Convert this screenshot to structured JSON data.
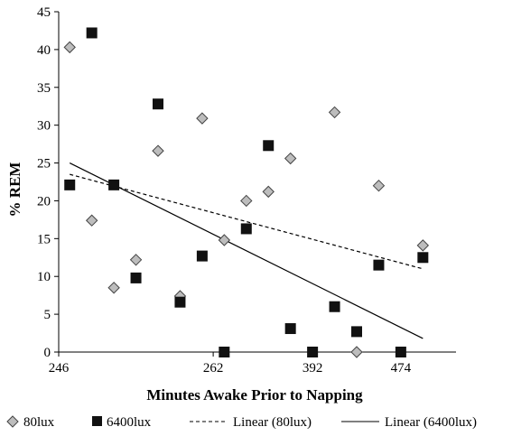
{
  "chart_data": {
    "type": "scatter",
    "title": "",
    "xlabel": "Minutes Awake Prior to Napping",
    "ylabel": "% REM",
    "ylim": [
      0,
      45
    ],
    "yticks": [
      0,
      5,
      10,
      15,
      20,
      25,
      30,
      35,
      40,
      45
    ],
    "xlim": [
      0,
      18
    ],
    "xticks": [
      {
        "pos": 0,
        "label": "246"
      },
      {
        "pos": 7,
        "label": "262"
      },
      {
        "pos": 11.5,
        "label": "392"
      },
      {
        "pos": 15.5,
        "label": "474"
      }
    ],
    "grid": false,
    "legend_position": "bottom",
    "series": [
      {
        "name": "80lux",
        "marker": "diamond",
        "color": "#bdbdbd",
        "points": [
          {
            "x": 0.5,
            "y": 40.3
          },
          {
            "x": 1.5,
            "y": 17.4
          },
          {
            "x": 2.5,
            "y": 8.5
          },
          {
            "x": 3.5,
            "y": 12.2
          },
          {
            "x": 4.5,
            "y": 26.6
          },
          {
            "x": 5.5,
            "y": 7.4
          },
          {
            "x": 6.5,
            "y": 30.9
          },
          {
            "x": 7.5,
            "y": 14.8
          },
          {
            "x": 8.5,
            "y": 20.0
          },
          {
            "x": 9.5,
            "y": 21.2
          },
          {
            "x": 10.5,
            "y": 25.6
          },
          {
            "x": 12.5,
            "y": 31.7
          },
          {
            "x": 13.5,
            "y": 0.0
          },
          {
            "x": 14.5,
            "y": 22.0
          },
          {
            "x": 16.5,
            "y": 14.1
          }
        ]
      },
      {
        "name": "6400lux",
        "marker": "square",
        "color": "#111111",
        "points": [
          {
            "x": 0.5,
            "y": 22.1
          },
          {
            "x": 1.5,
            "y": 42.2
          },
          {
            "x": 2.5,
            "y": 22.1
          },
          {
            "x": 3.5,
            "y": 9.8
          },
          {
            "x": 4.5,
            "y": 32.8
          },
          {
            "x": 5.5,
            "y": 6.6
          },
          {
            "x": 6.5,
            "y": 12.7
          },
          {
            "x": 7.5,
            "y": 0.0
          },
          {
            "x": 8.5,
            "y": 16.3
          },
          {
            "x": 9.5,
            "y": 27.3
          },
          {
            "x": 10.5,
            "y": 3.1
          },
          {
            "x": 11.5,
            "y": 0.0
          },
          {
            "x": 12.5,
            "y": 6.0
          },
          {
            "x": 13.5,
            "y": 2.7
          },
          {
            "x": 14.5,
            "y": 11.5
          },
          {
            "x": 15.5,
            "y": 0.0
          },
          {
            "x": 16.5,
            "y": 12.5
          }
        ]
      }
    ],
    "trendlines": [
      {
        "name": "Linear (80lux)",
        "style": "dashed",
        "x": [
          0.5,
          16.5
        ],
        "y": [
          23.5,
          11.0
        ]
      },
      {
        "name": "Linear (6400lux)",
        "style": "solid",
        "x": [
          0.5,
          16.5
        ],
        "y": [
          25.0,
          1.8
        ]
      }
    ]
  }
}
